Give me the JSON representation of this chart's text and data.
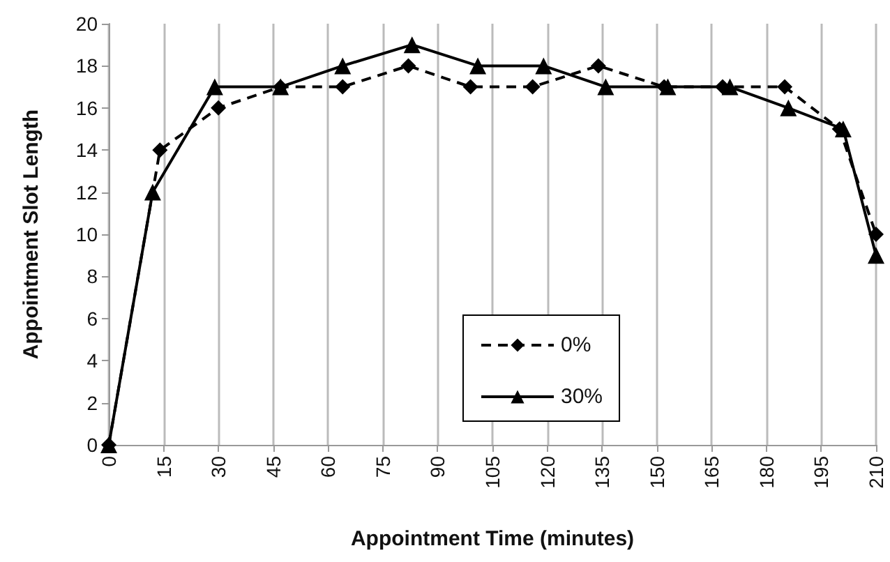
{
  "chart_data": {
    "type": "line",
    "xlabel": "Appointment Time (minutes)",
    "ylabel": "Appointment Slot Length",
    "xlim": [
      0,
      210
    ],
    "xticks": [
      0,
      15,
      30,
      45,
      60,
      75,
      90,
      105,
      120,
      135,
      150,
      165,
      180,
      195,
      210
    ],
    "ylim": [
      0,
      20
    ],
    "yticks": [
      0,
      2,
      4,
      6,
      8,
      10,
      12,
      14,
      16,
      18,
      20
    ],
    "grid": "x",
    "legend": "bottom",
    "series": [
      {
        "name": "0%",
        "color": "#000000",
        "marker": "diamond",
        "line_style": "dashed",
        "x": [
          0,
          14,
          30,
          47,
          64,
          82,
          99,
          116,
          134,
          152,
          168,
          185,
          200,
          210
        ],
        "values": [
          0,
          14,
          16,
          17,
          17,
          18,
          17,
          17,
          18,
          17,
          17,
          17,
          15,
          10
        ]
      },
      {
        "name": "30%",
        "color": "#000000",
        "marker": "triangle",
        "line_style": "solid",
        "x": [
          0,
          12,
          29,
          47,
          64,
          83,
          101,
          119,
          136,
          153,
          170,
          186,
          201,
          210
        ],
        "values": [
          0,
          12,
          17,
          17,
          18,
          19,
          18,
          18,
          17,
          17,
          17,
          16,
          15,
          9
        ]
      }
    ]
  }
}
